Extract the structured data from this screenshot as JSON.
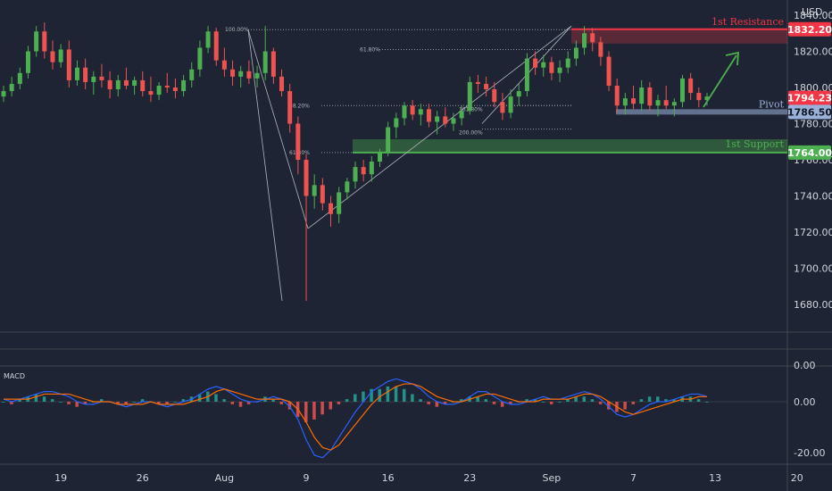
{
  "chart_data": {
    "type": "candlestick",
    "currency": "USD",
    "y_ticks": [
      "1840.00",
      "1820.00",
      "1800.00",
      "1780.00",
      "1760.00",
      "1740.00",
      "1720.00",
      "1700.00",
      "1680.00"
    ],
    "y_tick_values": [
      1840,
      1820,
      1800,
      1780,
      1760,
      1740,
      1720,
      1700,
      1680
    ],
    "ylim": [
      1670,
      1844
    ],
    "x_ticks": [
      "19",
      "26",
      "Aug",
      "9",
      "16",
      "23",
      "Sep",
      "7",
      "13",
      "20"
    ],
    "x_tick_index": [
      7,
      17,
      27,
      37,
      47,
      57,
      67,
      77,
      87,
      97
    ],
    "macd": {
      "title": "MACD",
      "y_ticks": [
        "0.00",
        "0.00",
        "-20.00"
      ],
      "ylim": [
        -24,
        12
      ]
    },
    "candles": [
      [
        1795,
        1801,
        1792,
        1798
      ],
      [
        1798,
        1806,
        1795,
        1802
      ],
      [
        1802,
        1811,
        1799,
        1808
      ],
      [
        1808,
        1823,
        1805,
        1820
      ],
      [
        1820,
        1834,
        1817,
        1831
      ],
      [
        1831,
        1836,
        1816,
        1820
      ],
      [
        1820,
        1826,
        1810,
        1814
      ],
      [
        1814,
        1824,
        1811,
        1821
      ],
      [
        1821,
        1826,
        1800,
        1804
      ],
      [
        1804,
        1815,
        1801,
        1811
      ],
      [
        1811,
        1816,
        1799,
        1803
      ],
      [
        1803,
        1809,
        1796,
        1806
      ],
      [
        1806,
        1813,
        1800,
        1804
      ],
      [
        1804,
        1809,
        1794,
        1799
      ],
      [
        1799,
        1807,
        1795,
        1804
      ],
      [
        1804,
        1811,
        1799,
        1801
      ],
      [
        1801,
        1806,
        1796,
        1804
      ],
      [
        1804,
        1809,
        1795,
        1798
      ],
      [
        1798,
        1806,
        1792,
        1796
      ],
      [
        1796,
        1803,
        1793,
        1801
      ],
      [
        1801,
        1808,
        1797,
        1800
      ],
      [
        1800,
        1805,
        1794,
        1798
      ],
      [
        1798,
        1807,
        1795,
        1804
      ],
      [
        1804,
        1814,
        1800,
        1810
      ],
      [
        1810,
        1826,
        1806,
        1822
      ],
      [
        1822,
        1834,
        1819,
        1831
      ],
      [
        1831,
        1833,
        1812,
        1815
      ],
      [
        1815,
        1822,
        1806,
        1810
      ],
      [
        1810,
        1815,
        1801,
        1806
      ],
      [
        1806,
        1812,
        1800,
        1809
      ],
      [
        1809,
        1815,
        1802,
        1805
      ],
      [
        1805,
        1812,
        1800,
        1808
      ],
      [
        1808,
        1834,
        1804,
        1820
      ],
      [
        1820,
        1822,
        1802,
        1806
      ],
      [
        1806,
        1810,
        1795,
        1798
      ],
      [
        1798,
        1802,
        1775,
        1780
      ],
      [
        1780,
        1784,
        1752,
        1760
      ],
      [
        1760,
        1763,
        1682,
        1740
      ],
      [
        1740,
        1752,
        1733,
        1746
      ],
      [
        1746,
        1750,
        1732,
        1736
      ],
      [
        1736,
        1740,
        1723,
        1730
      ],
      [
        1730,
        1745,
        1725,
        1742
      ],
      [
        1742,
        1750,
        1738,
        1748
      ],
      [
        1748,
        1759,
        1744,
        1756
      ],
      [
        1756,
        1760,
        1748,
        1752
      ],
      [
        1752,
        1762,
        1748,
        1759
      ],
      [
        1759,
        1766,
        1756,
        1764
      ],
      [
        1764,
        1781,
        1762,
        1778
      ],
      [
        1778,
        1786,
        1772,
        1783
      ],
      [
        1783,
        1792,
        1779,
        1790
      ],
      [
        1790,
        1793,
        1782,
        1785
      ],
      [
        1785,
        1791,
        1779,
        1788
      ],
      [
        1788,
        1791,
        1778,
        1781
      ],
      [
        1781,
        1787,
        1774,
        1784
      ],
      [
        1784,
        1789,
        1778,
        1780
      ],
      [
        1780,
        1786,
        1776,
        1783
      ],
      [
        1783,
        1790,
        1779,
        1787
      ],
      [
        1787,
        1806,
        1785,
        1803
      ],
      [
        1803,
        1807,
        1797,
        1802
      ],
      [
        1802,
        1806,
        1795,
        1799
      ],
      [
        1799,
        1803,
        1789,
        1792
      ],
      [
        1792,
        1797,
        1782,
        1786
      ],
      [
        1786,
        1799,
        1783,
        1795
      ],
      [
        1795,
        1802,
        1790,
        1798
      ],
      [
        1798,
        1819,
        1795,
        1816
      ],
      [
        1816,
        1820,
        1807,
        1811
      ],
      [
        1811,
        1818,
        1806,
        1814
      ],
      [
        1814,
        1817,
        1804,
        1808
      ],
      [
        1808,
        1815,
        1803,
        1811
      ],
      [
        1811,
        1820,
        1808,
        1816
      ],
      [
        1816,
        1826,
        1812,
        1822
      ],
      [
        1822,
        1834,
        1818,
        1830
      ],
      [
        1830,
        1833,
        1820,
        1825
      ],
      [
        1825,
        1828,
        1812,
        1817
      ],
      [
        1817,
        1820,
        1798,
        1801
      ],
      [
        1801,
        1805,
        1786,
        1790
      ],
      [
        1790,
        1797,
        1785,
        1794
      ],
      [
        1794,
        1801,
        1788,
        1791
      ],
      [
        1791,
        1804,
        1787,
        1800
      ],
      [
        1800,
        1803,
        1787,
        1790
      ],
      [
        1790,
        1796,
        1784,
        1793
      ],
      [
        1793,
        1801,
        1788,
        1790
      ],
      [
        1790,
        1794,
        1784,
        1792
      ],
      [
        1792,
        1807,
        1789,
        1805
      ],
      [
        1805,
        1808,
        1793,
        1797
      ],
      [
        1797,
        1800,
        1789,
        1793
      ],
      [
        1793,
        1797,
        1790,
        1795
      ]
    ],
    "macd_hist": [
      0,
      -1,
      1,
      2,
      3,
      2,
      1,
      0,
      -1,
      -2,
      -1,
      0,
      1,
      0,
      -1,
      -1,
      0,
      1,
      0,
      -1,
      -1,
      0,
      1,
      2,
      3,
      4,
      3,
      1,
      -1,
      -2,
      -1,
      0,
      2,
      1,
      -1,
      -3,
      -6,
      -8,
      -7,
      -5,
      -3,
      -1,
      1,
      3,
      4,
      5,
      5,
      6,
      6,
      5,
      3,
      1,
      -1,
      -2,
      -1,
      0,
      1,
      2,
      2,
      1,
      -1,
      -2,
      -1,
      0,
      1,
      1,
      0,
      -1,
      0,
      1,
      2,
      2,
      1,
      -1,
      -3,
      -4,
      -3,
      -1,
      1,
      2,
      2,
      1,
      1,
      2,
      2,
      1,
      0
    ],
    "macd_line": [
      1,
      0,
      1,
      2,
      3,
      4,
      4,
      3,
      2,
      0,
      -1,
      -1,
      0,
      0,
      -1,
      -2,
      -1,
      0,
      0,
      -1,
      -2,
      -1,
      0,
      1,
      3,
      5,
      6,
      5,
      3,
      1,
      0,
      0,
      1,
      2,
      1,
      -2,
      -7,
      -15,
      -21,
      -22,
      -19,
      -14,
      -9,
      -4,
      0,
      4,
      6,
      8,
      9,
      8,
      7,
      5,
      2,
      0,
      -1,
      -1,
      0,
      2,
      4,
      4,
      2,
      0,
      -1,
      -1,
      0,
      1,
      2,
      1,
      1,
      2,
      3,
      4,
      3,
      1,
      -2,
      -5,
      -6,
      -5,
      -3,
      -1,
      0,
      0,
      1,
      2,
      3,
      3,
      2
    ],
    "signal_line": [
      1,
      1,
      1,
      1,
      2,
      3,
      3,
      3,
      3,
      2,
      1,
      0,
      0,
      0,
      -1,
      -1,
      -1,
      -1,
      0,
      -1,
      -1,
      -1,
      -1,
      0,
      1,
      2,
      4,
      5,
      4,
      3,
      2,
      1,
      1,
      1,
      1,
      0,
      -3,
      -8,
      -14,
      -18,
      -19,
      -17,
      -13,
      -9,
      -5,
      -1,
      2,
      4,
      6,
      7,
      7,
      6,
      4,
      2,
      1,
      0,
      0,
      1,
      2,
      3,
      3,
      2,
      1,
      0,
      0,
      0,
      1,
      1,
      1,
      1,
      2,
      3,
      3,
      2,
      0,
      -2,
      -4,
      -5,
      -4,
      -3,
      -2,
      -1,
      0,
      1,
      1,
      2,
      2
    ]
  },
  "annotations": {
    "resistance": {
      "label": "1st Resistance",
      "value": "1832.20",
      "level": 1832.2,
      "color": "#f23645"
    },
    "pivot": {
      "label": "Pivot",
      "value": "1786.50",
      "level": 1786.5,
      "color": "#9ab1d9"
    },
    "support": {
      "label": "1st Support",
      "value": "1764.00",
      "level": 1764.0,
      "color": "#4caf50"
    },
    "current": {
      "value": "1794.23",
      "level": 1794.23,
      "color": "#f23645"
    },
    "fib_labels": [
      "100.00%",
      "61.80%",
      "38.20%",
      "161.80%",
      "200.00%",
      "61.80%"
    ],
    "colors": {
      "up": "#26a69a",
      "down": "#ef5350",
      "up_bright": "#4caf50",
      "grid": "#2a2e39",
      "axis_text": "#d1d4dc",
      "macd": "#2962ff",
      "signal": "#ff6d00"
    }
  }
}
